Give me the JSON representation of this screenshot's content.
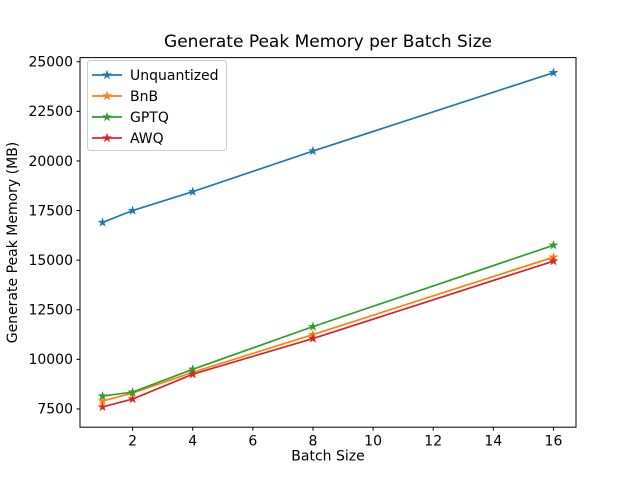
{
  "figure": {
    "background": "#ffffff",
    "spine_color": "#000000"
  },
  "chart_data": {
    "type": "line",
    "title": "Generate Peak Memory per Batch Size",
    "xlabel": "Batch Size",
    "ylabel": "Generate Peak Memory (MB)",
    "x": [
      1,
      2,
      4,
      8,
      16
    ],
    "series": [
      {
        "name": "Unquantized",
        "color": "#1f77b4",
        "marker": "star",
        "values": [
          16900,
          17500,
          18450,
          20500,
          24450
        ]
      },
      {
        "name": "BnB",
        "color": "#ff7f0e",
        "marker": "star",
        "values": [
          7900,
          8300,
          9350,
          11250,
          15150
        ]
      },
      {
        "name": "GPTQ",
        "color": "#2ca02c",
        "marker": "star",
        "values": [
          8150,
          8350,
          9500,
          11650,
          15750
        ]
      },
      {
        "name": "AWQ",
        "color": "#d62728",
        "marker": "star",
        "values": [
          7600,
          8000,
          9250,
          11050,
          14950
        ]
      }
    ],
    "xticks": [
      2,
      4,
      6,
      8,
      10,
      12,
      14,
      16
    ],
    "yticks": [
      7500,
      10000,
      12500,
      15000,
      17500,
      20000,
      22500,
      25000
    ],
    "xlim": [
      0.25,
      16.75
    ],
    "ylim": [
      6580,
      25210
    ],
    "grid": false,
    "legend": {
      "position": "upper-left",
      "border_color": "#cccccc",
      "background": "#ffffff",
      "entries": [
        "Unquantized",
        "BnB",
        "GPTQ",
        "AWQ"
      ]
    }
  }
}
